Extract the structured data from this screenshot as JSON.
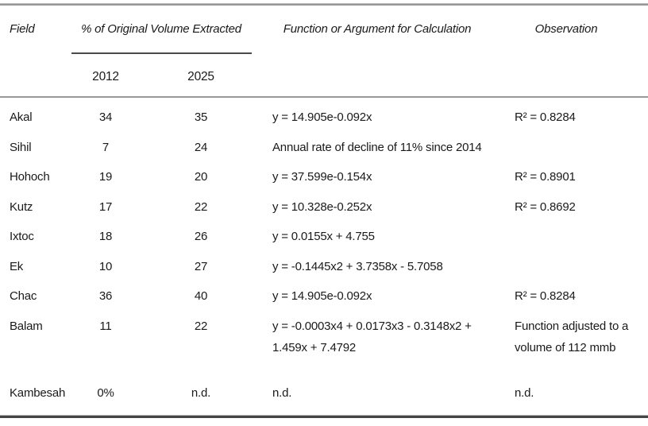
{
  "style": {
    "ink_color": "#1a1a1a",
    "rule_color_light": "#9a9a9a",
    "rule_color_dark": "#454545",
    "background": "#ffffff"
  },
  "table": {
    "header": {
      "field": "Field",
      "volume_group": "% of Original Volume Extracted",
      "col_2012": "2012",
      "col_2025": "2025",
      "function": "Function or Argument for Calculation",
      "observation": "Observation"
    },
    "rows": [
      {
        "field": "Akal",
        "pct_2012": "34",
        "pct_2025": "35",
        "function": "y = 14.905e-0.092x",
        "observation": "R² = 0.8284"
      },
      {
        "field": "Sihil",
        "pct_2012": "7",
        "pct_2025": "24",
        "function": "Annual rate of decline of 11% since 2014",
        "observation": ""
      },
      {
        "field": "Hohoch",
        "pct_2012": "19",
        "pct_2025": "20",
        "function": "y = 37.599e-0.154x",
        "observation": "R² = 0.8901"
      },
      {
        "field": "Kutz",
        "pct_2012": "17",
        "pct_2025": "22",
        "function": "y = 10.328e-0.252x",
        "observation": "R² = 0.8692"
      },
      {
        "field": "Ixtoc",
        "pct_2012": "18",
        "pct_2025": "26",
        "function": "y = 0.0155x + 4.755",
        "observation": ""
      },
      {
        "field": "Ek",
        "pct_2012": "10",
        "pct_2025": "27",
        "function": "y = -0.1445x2 + 3.7358x - 5.7058",
        "observation": ""
      },
      {
        "field": "Chac",
        "pct_2012": "36",
        "pct_2025": "40",
        "function": "y = 14.905e-0.092x",
        "observation": "R² = 0.8284"
      },
      {
        "field": "Balam",
        "pct_2012": "11",
        "pct_2025": "22",
        "function": "y = -0.0003x4 + 0.0173x3 - 0.3148x2 + 1.459x + 7.4792",
        "observation": "Function adjusted to a volume of 112 mmb"
      },
      {
        "field": "Kambesah",
        "pct_2012": "0%",
        "pct_2025": "n.d.",
        "function": "n.d.",
        "observation": "n.d."
      }
    ]
  }
}
